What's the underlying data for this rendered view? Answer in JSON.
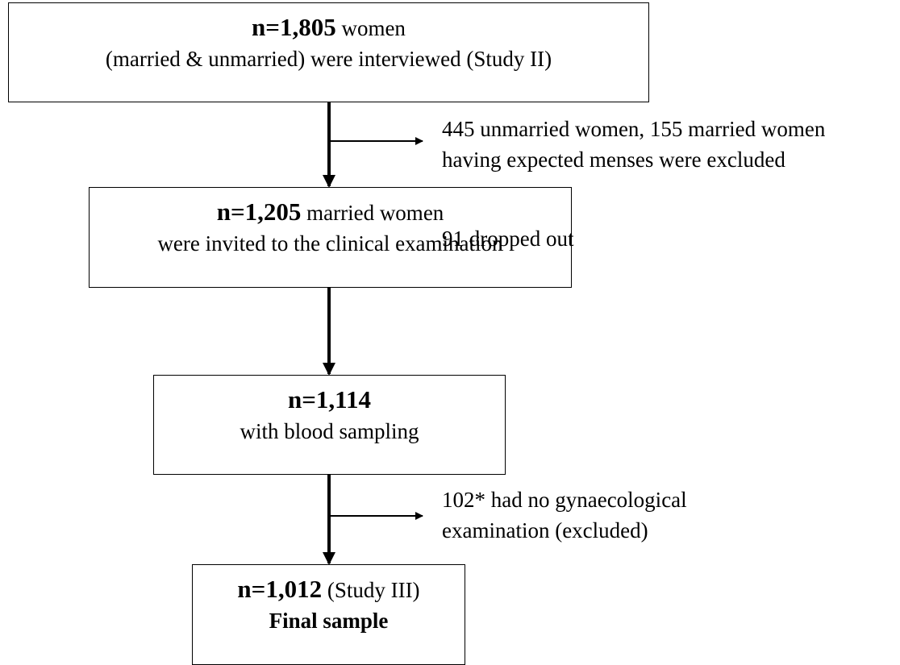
{
  "nodes": [
    {
      "count": "n=1,805",
      "text": "women",
      "detail": "(married & unmarried) were interviewed (Study II)"
    },
    {
      "count": "n=1,205",
      "text": "married women",
      "detail": "were invited to the clinical examination"
    },
    {
      "count": "n=1,114",
      "detail": "with blood sampling"
    },
    {
      "count": "n=1,012",
      "text": "(Study III)",
      "detail": "Final sample"
    }
  ],
  "exclusions": [
    {
      "lines": [
        "445 unmarried women, 155 married women",
        "having expected menses were excluded"
      ]
    },
    {
      "lines": [
        "91 dropped out"
      ]
    },
    {
      "lines": [
        "102* had no gynaecological",
        "examination (excluded)"
      ]
    }
  ]
}
